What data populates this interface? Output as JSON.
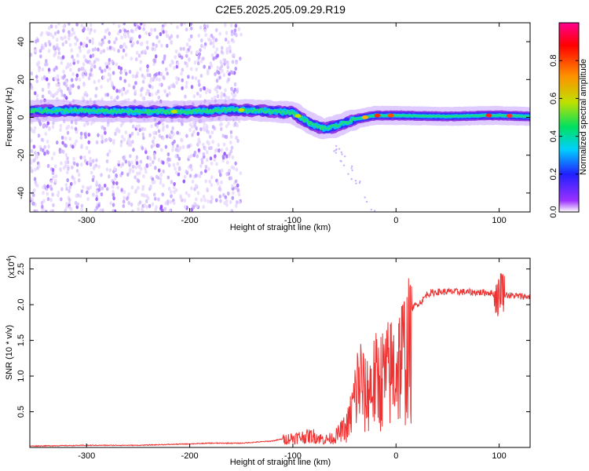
{
  "title": "C2E5.2025.205.09.29.R19",
  "chart_data": [
    {
      "type": "heatmap",
      "xlabel": "Height of straight line (km)",
      "ylabel": "Frequency (Hz)",
      "xlim": [
        -355,
        130
      ],
      "ylim": [
        -50,
        50
      ],
      "xticks": [
        -300,
        -200,
        -100,
        0,
        100
      ],
      "xtick_labels": [
        "-300",
        "-200",
        "-100",
        "0",
        "100"
      ],
      "yticks": [
        -40,
        -20,
        0,
        20,
        40
      ],
      "ytick_labels": [
        "-40",
        "-20",
        "0",
        "20",
        "40"
      ],
      "colorbar": {
        "label": "Normalized spectral amplitude",
        "range": [
          0,
          1
        ],
        "ticks": [
          0,
          0.2,
          0.4,
          0.6,
          0.8
        ],
        "tick_labels": [
          "0.0",
          "0.2",
          "0.4",
          "0.6",
          "0.8"
        ],
        "colormap": "rainbow",
        "stops": [
          "#ffffff",
          "#9b30ff",
          "#2020ff",
          "#00d0ff",
          "#00e060",
          "#c0e000",
          "#ff9000",
          "#ff0000",
          "#ff0090"
        ]
      },
      "ridge_frequency": [
        {
          "x": -355,
          "y": 3.5
        },
        {
          "x": -300,
          "y": 3.5
        },
        {
          "x": -250,
          "y": 3.0
        },
        {
          "x": -200,
          "y": 3.0
        },
        {
          "x": -160,
          "y": 4.0
        },
        {
          "x": -130,
          "y": 3.5
        },
        {
          "x": -100,
          "y": 2.5
        },
        {
          "x": -90,
          "y": -1.0
        },
        {
          "x": -80,
          "y": -4.0
        },
        {
          "x": -70,
          "y": -6.0
        },
        {
          "x": -60,
          "y": -5.0
        },
        {
          "x": -50,
          "y": -3.0
        },
        {
          "x": -40,
          "y": -1.0
        },
        {
          "x": -30,
          "y": 0.0
        },
        {
          "x": -20,
          "y": 1.0
        },
        {
          "x": 0,
          "y": 1.0
        },
        {
          "x": 50,
          "y": 0.5
        },
        {
          "x": 90,
          "y": 1.0
        },
        {
          "x": 100,
          "y": 1.0
        },
        {
          "x": 130,
          "y": 0.5
        }
      ],
      "noise_region_x": [
        -355,
        -150
      ]
    },
    {
      "type": "line",
      "xlabel": "Height of straight line (km)",
      "ylabel": "SNR (10 * v/v)",
      "y_multiplier": "(x10",
      "y_multiplier_exp": "4",
      "y_multiplier_close": ")",
      "xlim": [
        -355,
        130
      ],
      "ylim": [
        0,
        2.65
      ],
      "xticks": [
        -300,
        -200,
        -100,
        0,
        100
      ],
      "xtick_labels": [
        "-300",
        "-200",
        "-100",
        "0",
        "100"
      ],
      "yticks": [
        0.5,
        1.0,
        1.5,
        2.0,
        2.5
      ],
      "ytick_labels": [
        "0.5",
        "1.0",
        "1.5",
        "2.0",
        "2.5"
      ],
      "color": "#ee3333",
      "series": [
        {
          "x": [
            -355,
            -300,
            -250,
            -200,
            -180,
            -150,
            -120,
            -100,
            -80,
            -70,
            -60,
            -50,
            -45,
            -40,
            -35,
            -30,
            -25,
            -20,
            -15,
            -10,
            -5,
            0,
            5,
            10,
            15,
            20,
            25,
            30,
            40,
            60,
            80,
            90,
            95,
            100,
            102,
            105,
            110,
            120,
            130
          ],
          "values": [
            0.02,
            0.03,
            0.03,
            0.05,
            0.06,
            0.06,
            0.09,
            0.15,
            0.18,
            0.12,
            0.15,
            0.3,
            0.55,
            1.0,
            1.4,
            1.0,
            1.2,
            1.3,
            1.35,
            1.4,
            1.5,
            1.6,
            1.75,
            1.9,
            1.95,
            2.0,
            2.05,
            2.15,
            2.18,
            2.18,
            2.17,
            2.17,
            2.15,
            2.1,
            2.3,
            2.15,
            2.13,
            2.12,
            2.11
          ]
        }
      ]
    }
  ]
}
